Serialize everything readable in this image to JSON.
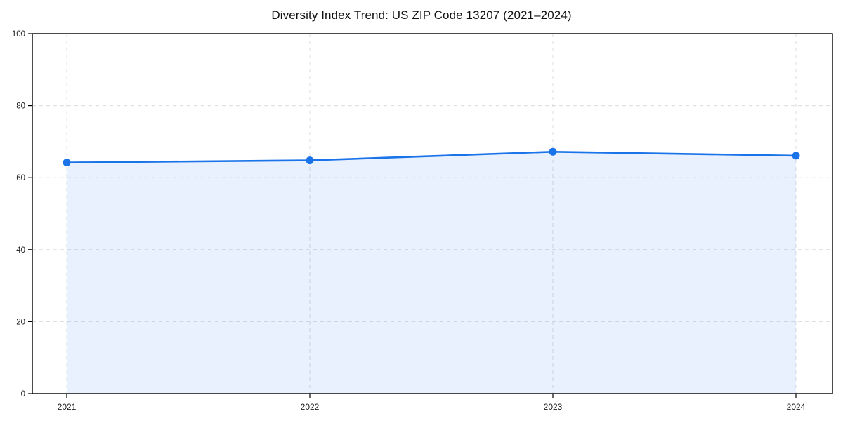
{
  "chart_data": {
    "type": "area",
    "title": "Diversity Index Trend: US ZIP Code 13207 (2021–2024)",
    "x": [
      2021,
      2022,
      2023,
      2024
    ],
    "x_labels": [
      "2021",
      "2022",
      "2023",
      "2024"
    ],
    "series": [
      {
        "name": "Diversity Index",
        "values": [
          64.2,
          64.8,
          67.2,
          66.1
        ]
      }
    ],
    "xlabel": "",
    "ylabel": "",
    "ylim": [
      0,
      100
    ],
    "yticks": [
      0,
      20,
      40,
      60,
      80,
      100
    ],
    "grid": "dashed horizontal and vertical",
    "legend": "none",
    "marker": "circle"
  },
  "colors": {
    "line": "#1a73e8",
    "marker": "#1a73e8",
    "area_fill": "rgba(26,115,232,0.10)",
    "grid": "#dcdcdc",
    "axis": "#000000",
    "tick_label": "#1a1a1a",
    "title": "#111111",
    "background": "#ffffff"
  }
}
